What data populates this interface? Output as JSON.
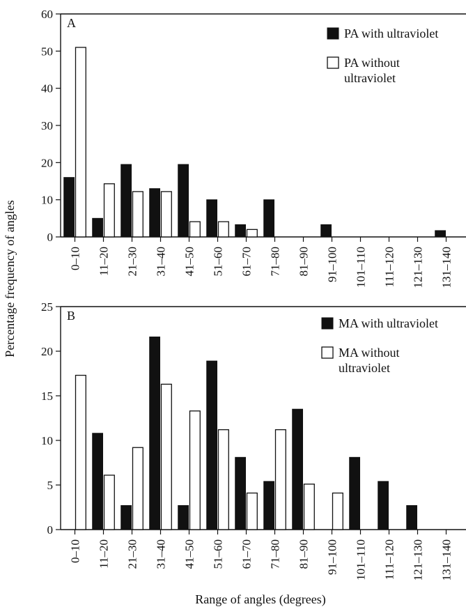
{
  "figure": {
    "ylabel": "Percentage frequency of angles",
    "xlabel": "Range of angles (degrees)"
  },
  "chart_data": [
    {
      "type": "bar",
      "panel_label": "A",
      "categories": [
        "0–10",
        "11–20",
        "21–30",
        "31–40",
        "41–50",
        "51–60",
        "61–70",
        "71–80",
        "81–90",
        "91–100",
        "101–110",
        "111–120",
        "121–130",
        "131–140"
      ],
      "series": [
        {
          "name": "PA with ultraviolet",
          "color": "#111111",
          "fill": "filled",
          "values": [
            16,
            5,
            19.5,
            13,
            19.5,
            10,
            3.3,
            10,
            0,
            3.3,
            0,
            0,
            0,
            1.7
          ]
        },
        {
          "name": "PA without ultraviolet",
          "color": "#ffffff",
          "fill": "open",
          "values": [
            51,
            14.3,
            12.2,
            12.2,
            4.1,
            4.1,
            2,
            0,
            0,
            0,
            0,
            0,
            0,
            0
          ]
        }
      ],
      "yticks": [
        0,
        10,
        20,
        30,
        40,
        50,
        60
      ],
      "ylim": [
        0,
        60
      ],
      "legend": "top-right",
      "grid": false
    },
    {
      "type": "bar",
      "panel_label": "B",
      "categories": [
        "0–10",
        "11–20",
        "21–30",
        "31–40",
        "41–50",
        "51–60",
        "61–70",
        "71–80",
        "81–90",
        "91–100",
        "101–110",
        "111–120",
        "121–130",
        "131–140"
      ],
      "series": [
        {
          "name": "MA with ultraviolet",
          "color": "#111111",
          "fill": "filled",
          "values": [
            0,
            10.8,
            2.7,
            21.6,
            2.7,
            18.9,
            8.1,
            5.4,
            13.5,
            0,
            8.1,
            5.4,
            2.7,
            0
          ]
        },
        {
          "name": "MA without ultraviolet",
          "color": "#ffffff",
          "fill": "open",
          "values": [
            17.3,
            6.1,
            9.2,
            16.3,
            13.3,
            11.2,
            4.1,
            11.2,
            5.1,
            4.1,
            0,
            0,
            0,
            0
          ]
        }
      ],
      "yticks": [
        0,
        5,
        10,
        15,
        20,
        25
      ],
      "ylim": [
        0,
        25
      ],
      "legend": "top-right",
      "grid": false
    }
  ]
}
